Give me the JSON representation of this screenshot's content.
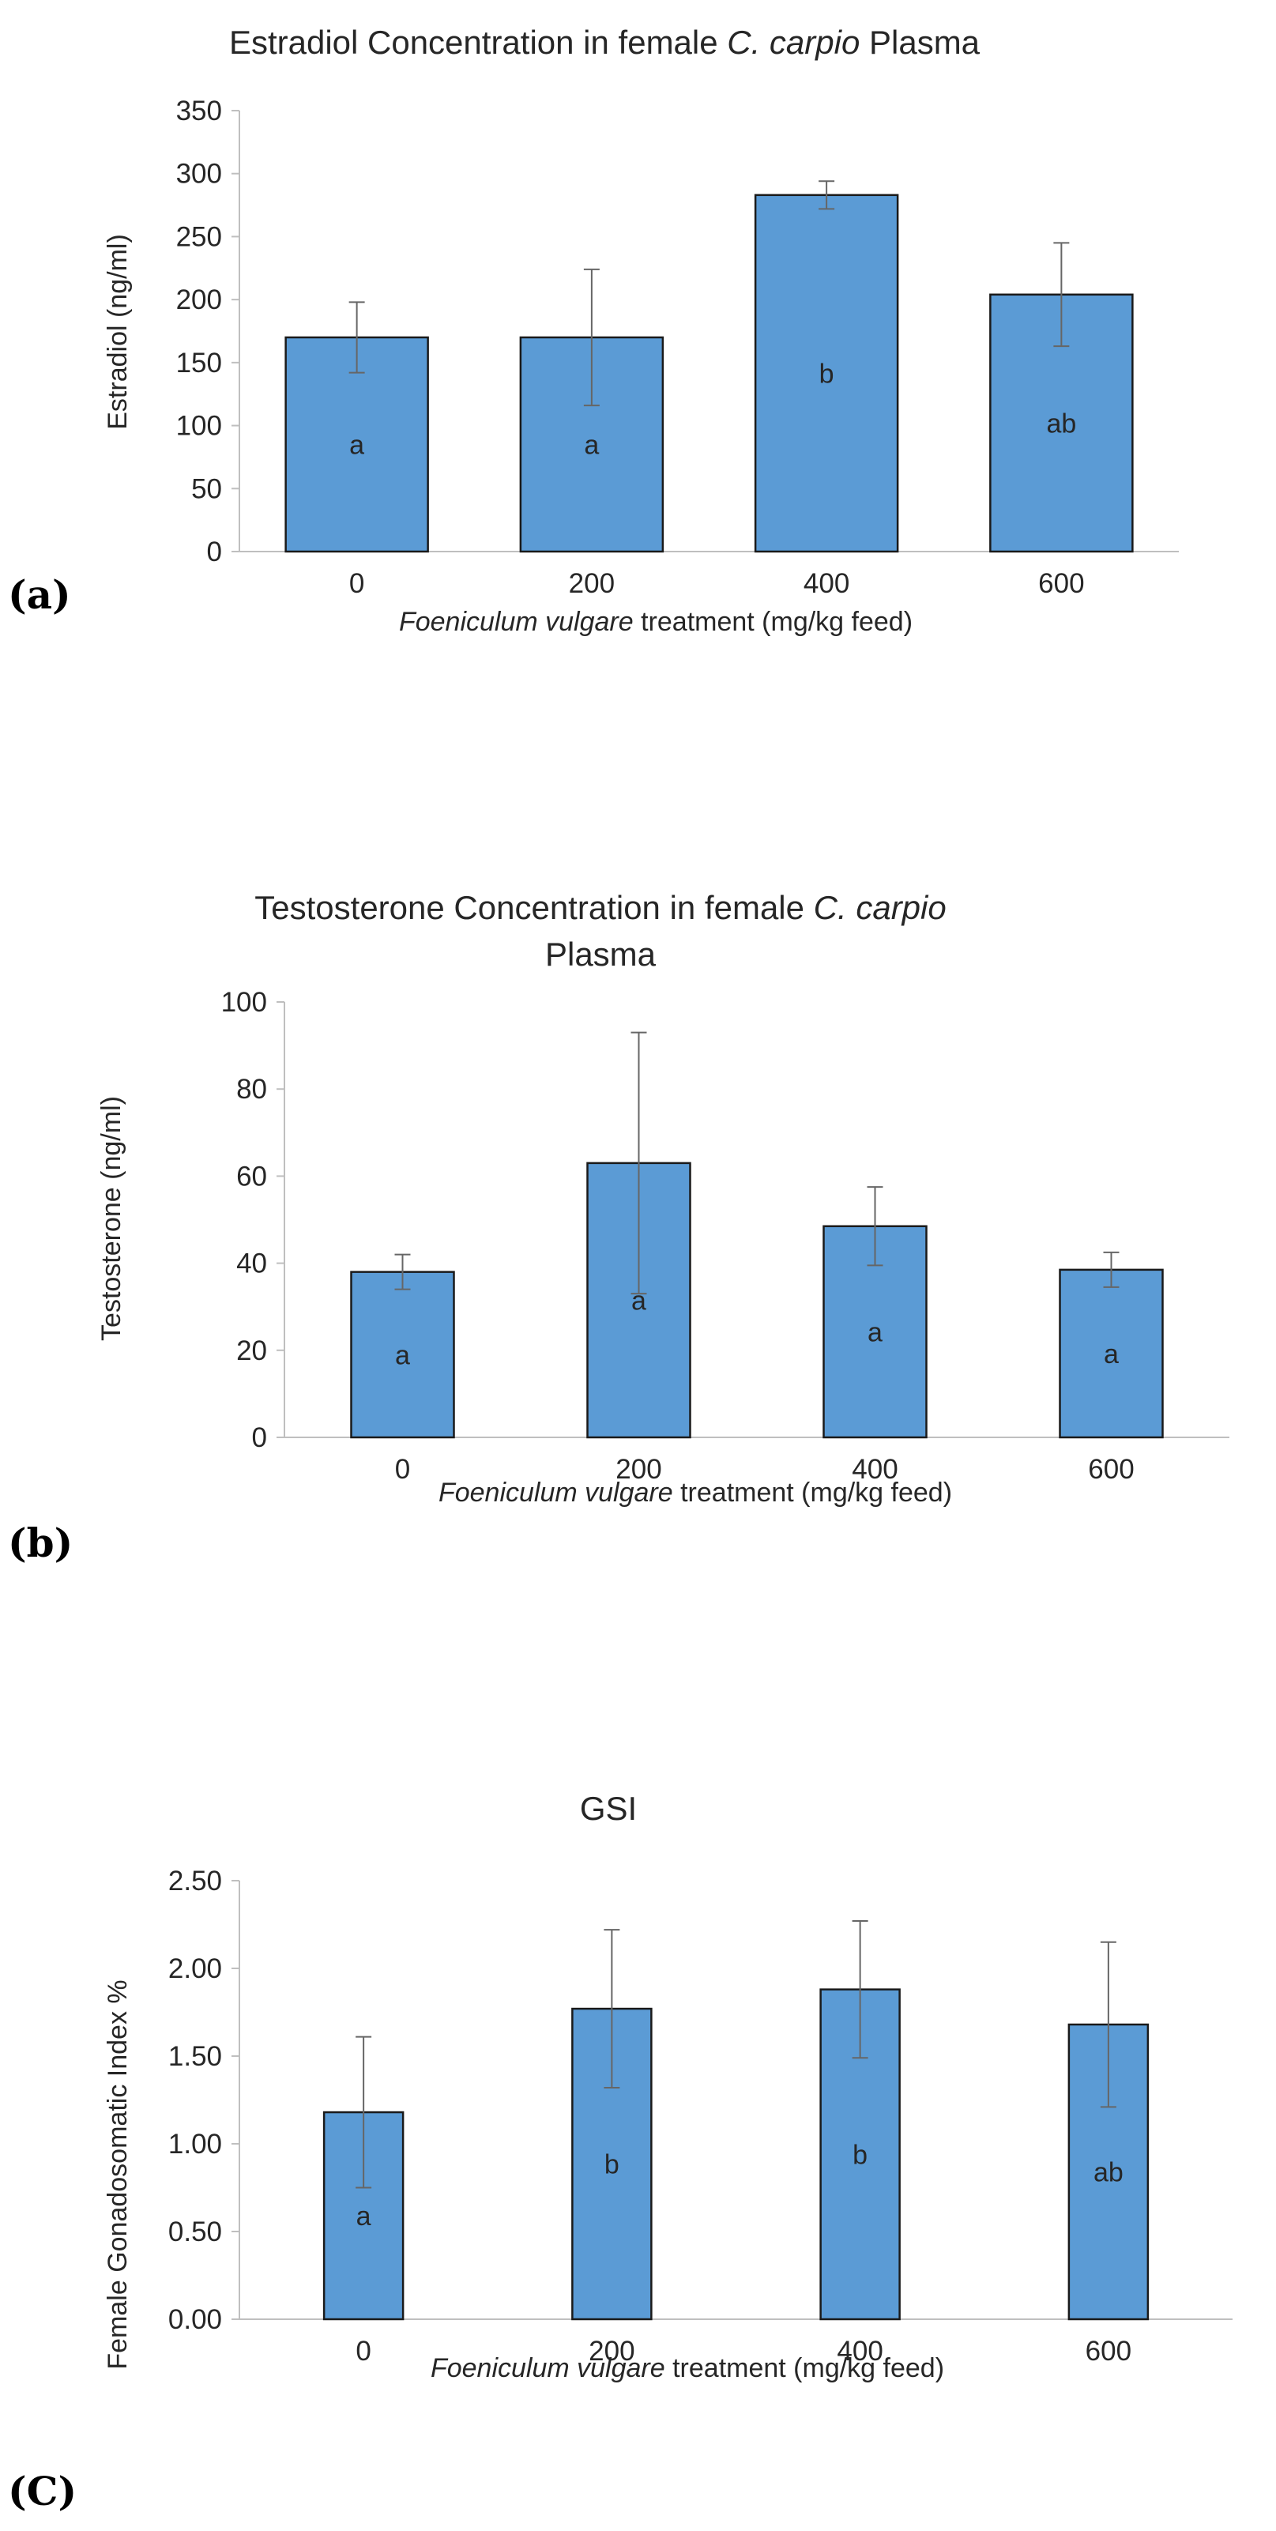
{
  "chart_data": [
    {
      "type": "bar",
      "panel": "(a)",
      "title": "Estradiol Concentration in female C. carpio Plasma",
      "title_parts": [
        "Estradiol Concentration in female ",
        "C. carpio",
        " Plasma"
      ],
      "ylabel": "Estradiol (ng/ml)",
      "xlabel_italic": "Foeniculum vulgare",
      "xlabel_rest": " treatment (mg/kg feed)",
      "categories": [
        "0",
        "200",
        "400",
        "600"
      ],
      "values": [
        170,
        170,
        283,
        204
      ],
      "errors": [
        28,
        54,
        11,
        41
      ],
      "letters": [
        "a",
        "a",
        "b",
        "ab"
      ],
      "ylim": [
        0,
        350
      ],
      "yticks": [
        "0",
        "50",
        "100",
        "150",
        "200",
        "250",
        "300",
        "350"
      ],
      "bar_color": "#5b9bd5"
    },
    {
      "type": "bar",
      "panel": "(b)",
      "title": "Testosterone Concentration in female C. carpio Plasma",
      "title_line1_parts": [
        "Testosterone Concentration in female ",
        "C. carpio"
      ],
      "title_line2": "Plasma",
      "ylabel": "Testosterone (ng/ml)",
      "xlabel_italic": "Foeniculum vulgare",
      "xlabel_rest": " treatment (mg/kg feed)",
      "categories": [
        "0",
        "200",
        "400",
        "600"
      ],
      "values": [
        38,
        63,
        48.5,
        38.5
      ],
      "errors": [
        4,
        30,
        9,
        4
      ],
      "letters": [
        "a",
        "a",
        "a",
        "a"
      ],
      "ylim": [
        0,
        100
      ],
      "yticks": [
        "0",
        "20",
        "40",
        "60",
        "80",
        "100"
      ],
      "bar_color": "#5b9bd5"
    },
    {
      "type": "bar",
      "panel": "(C)",
      "title": "GSI",
      "ylabel": "Female Gonadosomatic Index %",
      "xlabel_italic": "Foeniculum vulgare",
      "xlabel_rest": " treatment (mg/kg feed)",
      "categories": [
        "0",
        "200",
        "400",
        "600"
      ],
      "values": [
        1.18,
        1.77,
        1.88,
        1.68
      ],
      "errors": [
        0.43,
        0.45,
        0.39,
        0.47
      ],
      "letters": [
        "a",
        "b",
        "b",
        "ab"
      ],
      "ylim": [
        0,
        2.5
      ],
      "yticks": [
        "0.00",
        "0.50",
        "1.00",
        "1.50",
        "2.00",
        "2.50"
      ],
      "bar_color": "#5b9bd5"
    }
  ]
}
